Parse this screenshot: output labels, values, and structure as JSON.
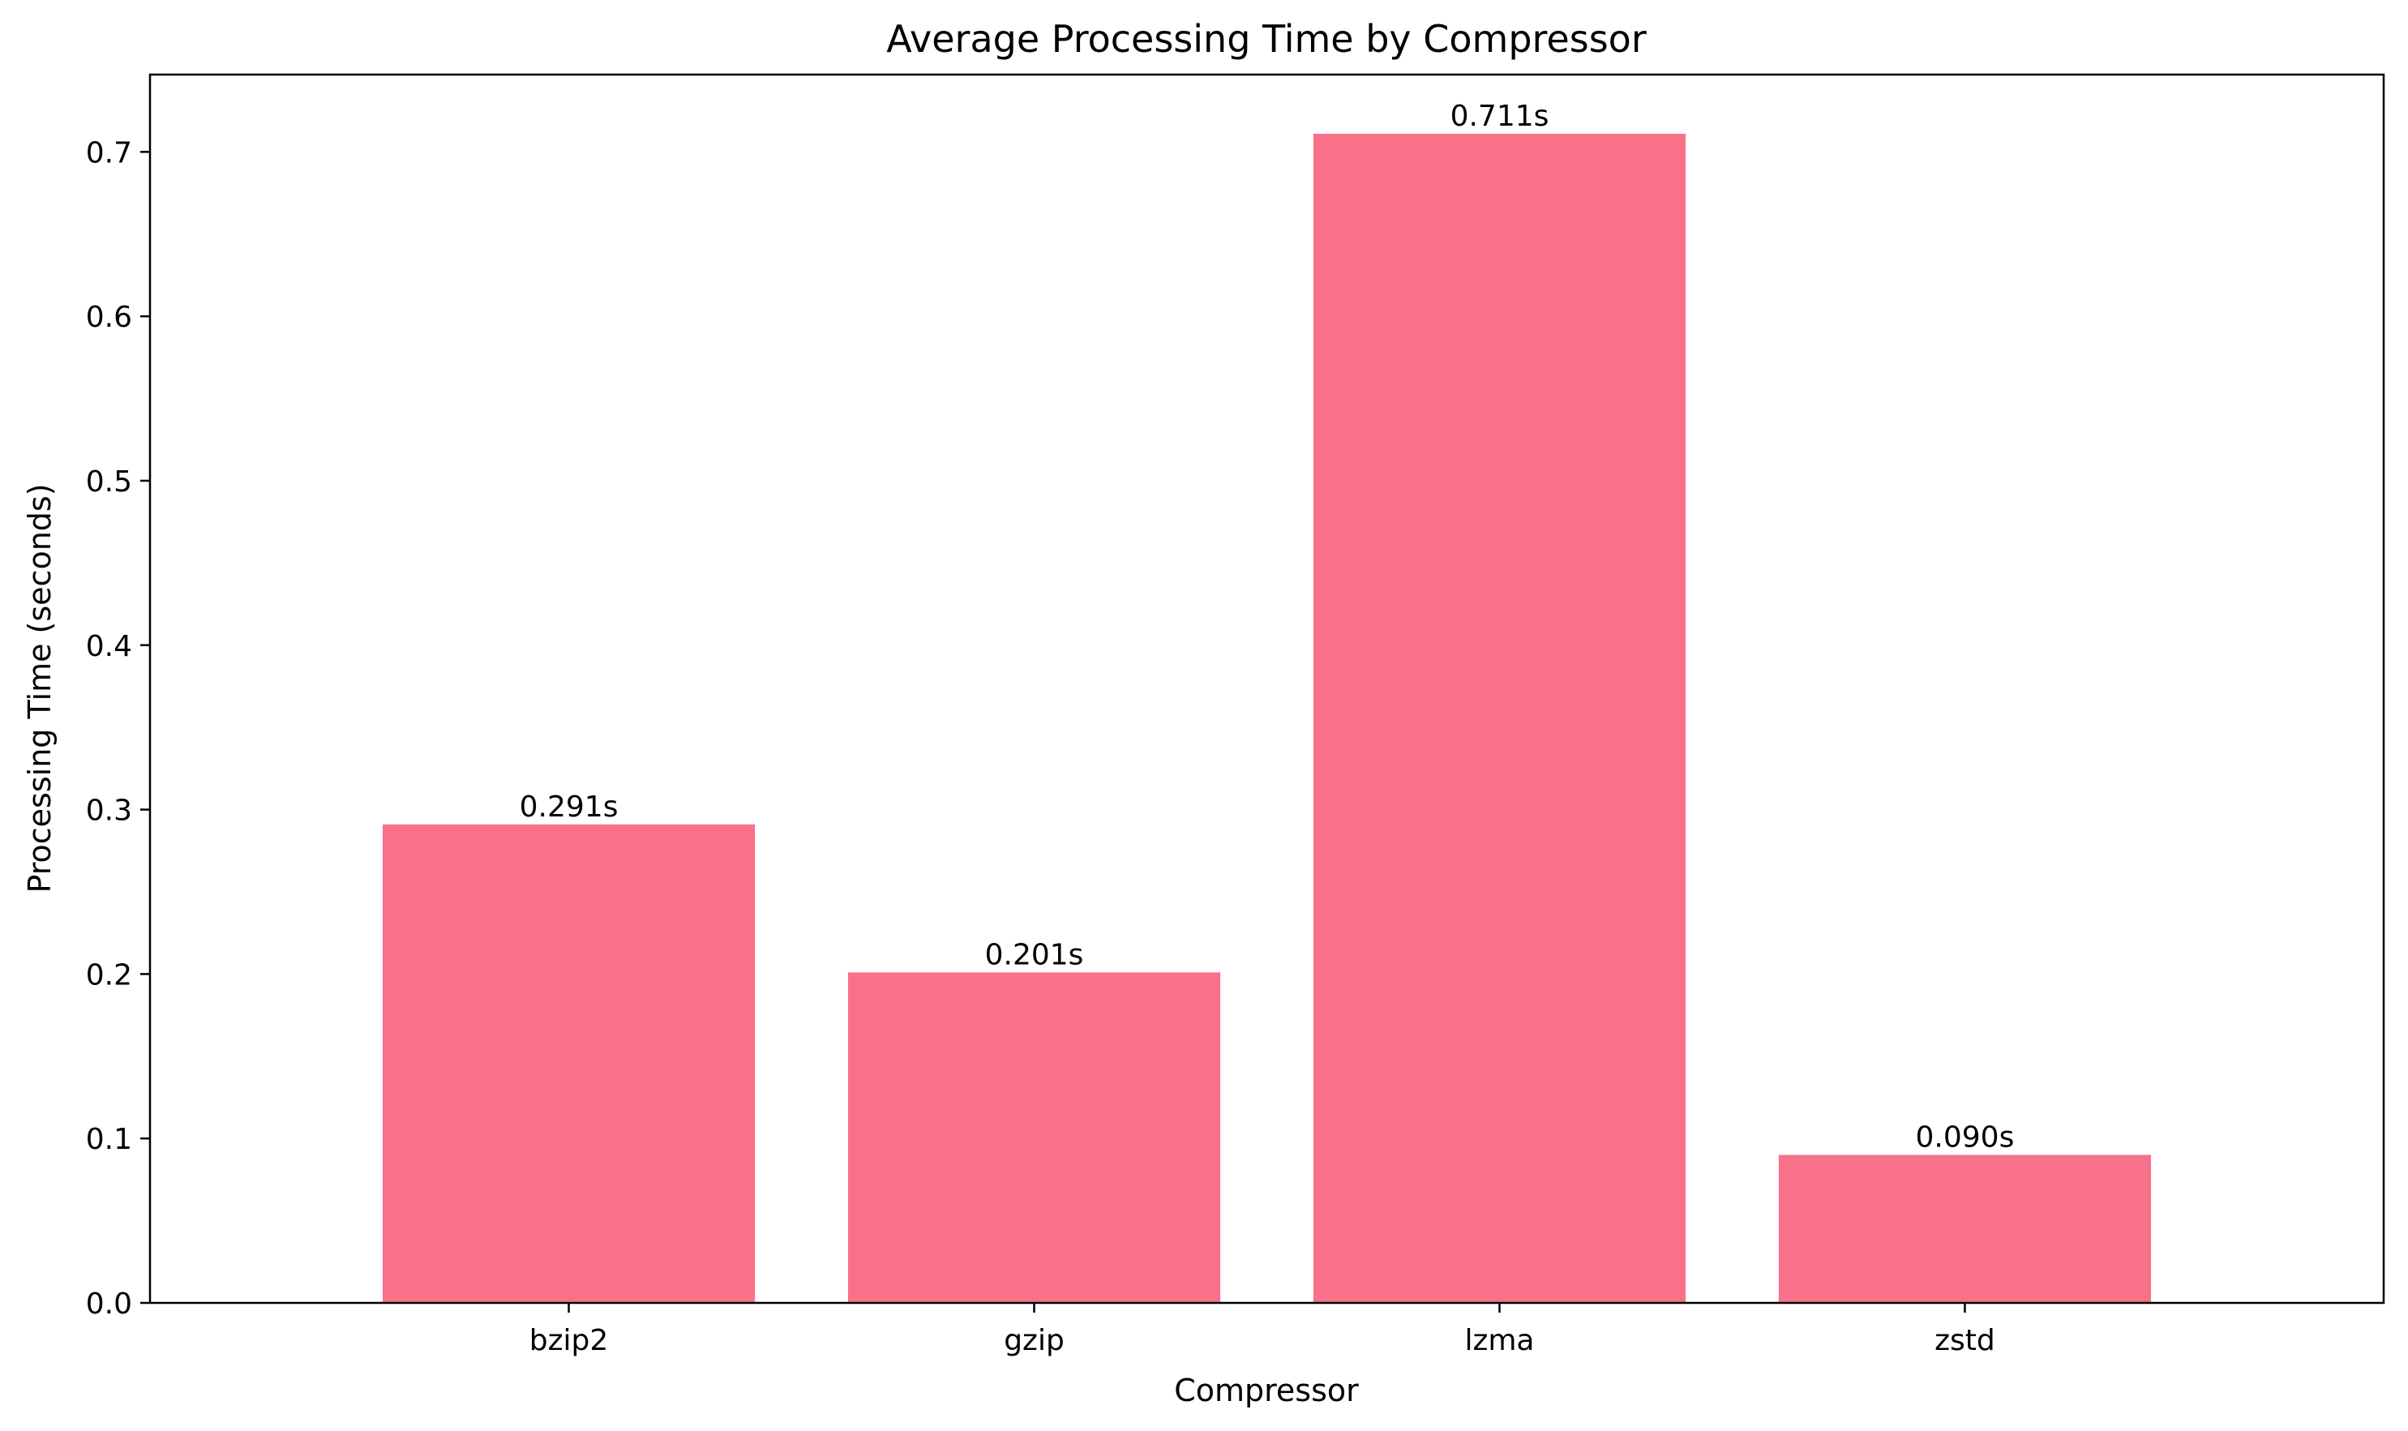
{
  "chart_data": {
    "type": "bar",
    "title": "Average Processing Time by Compressor",
    "xlabel": "Compressor",
    "ylabel": "Processing Time (seconds)",
    "categories": [
      "bzip2",
      "gzip",
      "lzma",
      "zstd"
    ],
    "values": [
      0.291,
      0.201,
      0.711,
      0.09
    ],
    "value_labels": [
      "0.291s",
      "0.201s",
      "0.711s",
      "0.090s"
    ],
    "ylim": [
      0,
      0.747
    ],
    "yticks": [
      0.0,
      0.1,
      0.2,
      0.3,
      0.4,
      0.5,
      0.6,
      0.7
    ],
    "ytick_labels": [
      "0.0",
      "0.1",
      "0.2",
      "0.3",
      "0.4",
      "0.5",
      "0.6",
      "0.7"
    ],
    "grid": false,
    "bar_color": "#f77189"
  }
}
